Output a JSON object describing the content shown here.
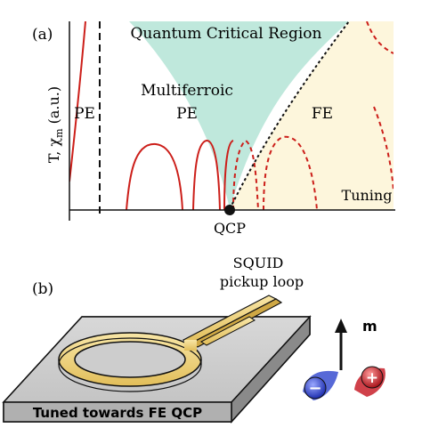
{
  "panel_a": {
    "label": "(a)",
    "region_quantum": "Quantum Critical Region",
    "region_multiferroic": "Multiferroic",
    "region_pe_mid": "PE",
    "region_pe_left": "PE",
    "region_fe": "FE",
    "axis_y": "T, χ",
    "axis_y_sub": "m",
    "axis_y_suffix": " (a.u.)",
    "axis_x": "Tuning",
    "point_label": "QCP"
  },
  "panel_b": {
    "label": "(b)",
    "squid_line1": "SQUID",
    "squid_line2": "pickup loop",
    "moment_label": "m",
    "plus_sign": "+",
    "minus_sign": "−",
    "base_caption": "Tuned towards FE QCP"
  },
  "colors": {
    "red_curve": "#cc1f1a",
    "quantum_region": "#bfe8dc",
    "fe_region": "#fdf6dc",
    "gold_loop": "#f0d78a",
    "blue_charge": "#3a4fd0",
    "red_charge": "#c8202a"
  }
}
